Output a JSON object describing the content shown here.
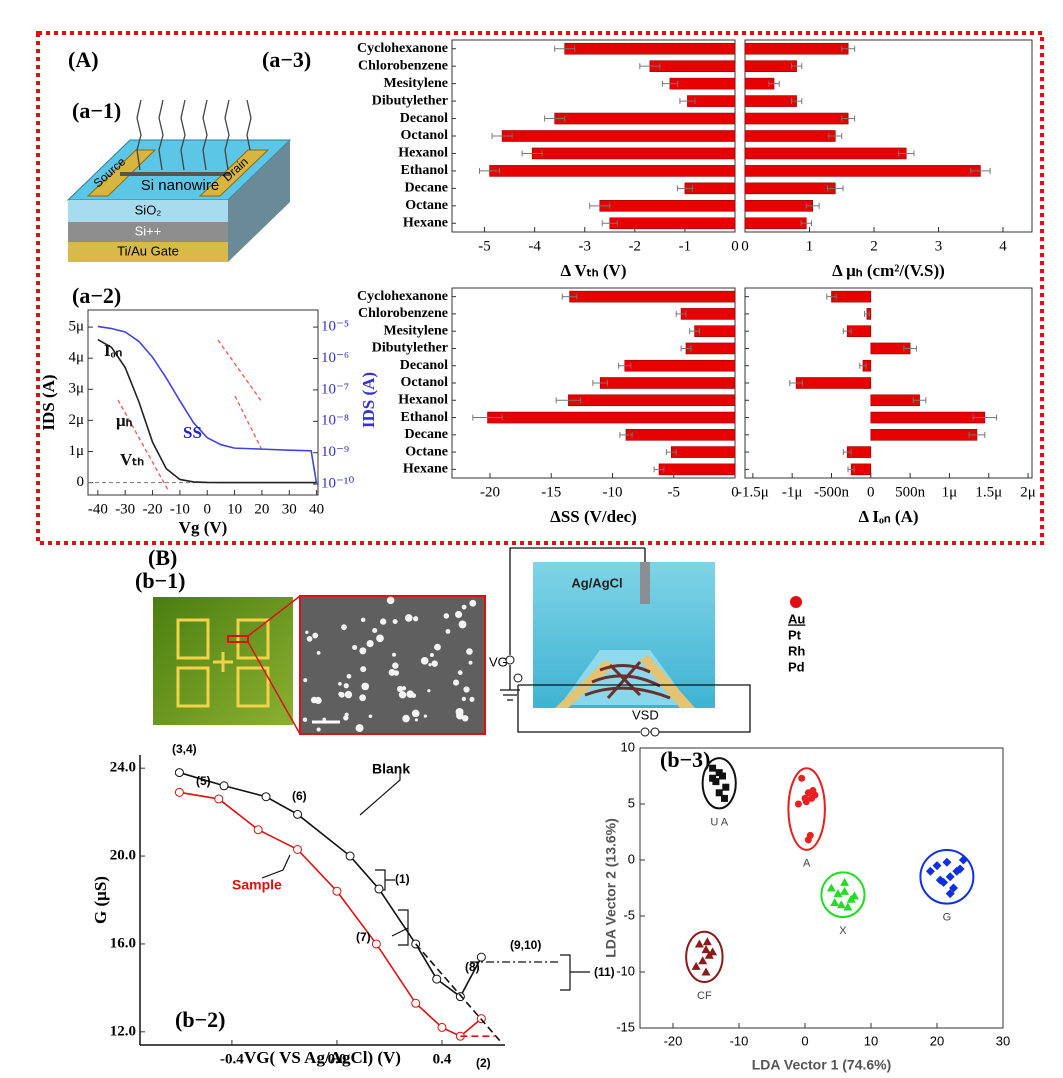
{
  "figure": {
    "panel_a": "(A)",
    "a1": "(a−1)",
    "a2": "(a−2)",
    "a3": "(a−3)",
    "panel_b": "(B)",
    "b1": "(b−1)",
    "b2": "(b−2)",
    "b3": "(b−3)"
  },
  "device": {
    "source": "Source",
    "drain": "Drain",
    "nanowire": "Si nanowire",
    "oxide": "SiO₂",
    "substrate": "Si++",
    "gate": "Ti/Au Gate"
  },
  "setup": {
    "electrode": "Ag/AgCl",
    "vg": "VG",
    "vsd": "VSD",
    "metals": [
      "Au",
      "Pt",
      "Rh",
      "Pd"
    ]
  },
  "chart_data": [
    {
      "type": "bar",
      "orientation": "horizontal",
      "xlabel": "Δ Vₜₕ (V)",
      "color": "#e60000",
      "categories": [
        "Cyclohexanone",
        "Chlorobenzene",
        "Mesitylene",
        "Dibutylether",
        "Decanol",
        "Octanol",
        "Hexanol",
        "Ethanol",
        "Decane",
        "Octane",
        "Hexane"
      ],
      "values": [
        -3.4,
        -1.7,
        -1.3,
        -0.95,
        -3.6,
        -4.65,
        -4.05,
        -4.9,
        -1.0,
        -2.7,
        -2.5
      ],
      "errors": [
        0.2,
        0.2,
        0.15,
        0.15,
        0.2,
        0.2,
        0.2,
        0.2,
        0.15,
        0.2,
        0.15
      ],
      "xlim": [
        -5.65,
        0
      ],
      "xticks": [
        -5,
        -4,
        -3,
        -2,
        -1,
        0
      ]
    },
    {
      "type": "bar",
      "orientation": "horizontal",
      "xlabel": "Δ μₕ (cm²/(V.S))",
      "color": "#e60000",
      "values": [
        1.6,
        0.8,
        0.45,
        0.8,
        1.6,
        1.4,
        2.5,
        3.65,
        1.4,
        1.05,
        0.95
      ],
      "errors": [
        0.1,
        0.08,
        0.08,
        0.08,
        0.1,
        0.1,
        0.12,
        0.15,
        0.12,
        0.1,
        0.08
      ],
      "xlim": [
        0,
        4.45
      ],
      "xticks": [
        0,
        1,
        2,
        3,
        4
      ]
    },
    {
      "type": "bar",
      "orientation": "horizontal",
      "xlabel": "ΔSS (V/dec)",
      "color": "#e60000",
      "categories": [
        "Cyclohexanone",
        "Chlorobenzene",
        "Mesitylene",
        "Dibutylether",
        "Decanol",
        "Octanol",
        "Hexanol",
        "Ethanol",
        "Decane",
        "Octane",
        "Hexane"
      ],
      "values": [
        -13.5,
        -4.4,
        -3.3,
        -4.0,
        -9.0,
        -11.0,
        -13.6,
        -20.2,
        -8.9,
        -5.2,
        -6.2
      ],
      "errors": [
        0.6,
        0.4,
        0.4,
        0.4,
        0.5,
        0.6,
        1.0,
        1.2,
        0.5,
        0.4,
        0.4
      ],
      "xlim": [
        -23.1,
        0
      ],
      "xticks": [
        -20,
        -15,
        -10,
        -5,
        0
      ]
    },
    {
      "type": "bar",
      "orientation": "horizontal",
      "xlabel": "Δ Iₒₙ (A)",
      "color": "#e60000",
      "values": [
        -5e-07,
        -5e-08,
        -3e-07,
        5e-07,
        -1e-07,
        -9.5e-07,
        6.2e-07,
        1.45e-06,
        1.35e-06,
        -3e-07,
        -2.5e-07
      ],
      "errors": [
        6e-08,
        3e-08,
        5e-08,
        8e-08,
        4e-08,
        8e-08,
        8e-08,
        1.5e-07,
        1e-07,
        5e-08,
        4e-08
      ],
      "xlim": [
        -1.6e-06,
        2.05e-06
      ],
      "xticks": [
        {
          "value": -1.5e-06,
          "label": "-1.5μ"
        },
        {
          "value": -1e-06,
          "label": "-1μ"
        },
        {
          "value": -5e-07,
          "label": "-500n"
        },
        0,
        {
          "value": 5e-07,
          "label": "500n"
        },
        {
          "value": 1e-06,
          "label": "1μ"
        },
        {
          "value": 1.5e-06,
          "label": "1.5μ"
        },
        {
          "value": 2e-06,
          "label": "2μ"
        }
      ]
    },
    {
      "type": "line",
      "xlabel": "Vg (V)",
      "ylabel": "IDS (A)",
      "y2label": "IDS (A)",
      "x": [
        -40,
        -35,
        -30,
        -25,
        -20,
        -15,
        -10,
        -5,
        0,
        5,
        10,
        20,
        30,
        38,
        40
      ],
      "series": [
        {
          "color": "#222222",
          "values": [
            4.6e-06,
            4.35e-06,
            3.7e-06,
            2.6e-06,
            1.3e-06,
            4.5e-07,
            1e-07,
            2e-08,
            3e-09,
            1e-09,
            1e-09,
            1e-09,
            1e-09,
            1e-09,
            1e-09
          ]
        },
        {
          "color": "#4444dd",
          "axis": "y2",
          "values": [
            1.05e-05,
            9e-06,
            7e-06,
            3.5e-06,
            1.1e-06,
            2.4e-07,
            4.5e-08,
            9e-09,
            3e-09,
            1.8e-09,
            1.4e-09,
            1.3e-09,
            1.2e-09,
            1.15e-09,
            1e-10
          ]
        }
      ],
      "xlim": [
        -43.6,
        40.5
      ],
      "xticks": [
        -40,
        -30,
        -20,
        -10,
        0,
        10,
        20,
        30,
        40
      ],
      "ylim": [
        -4e-07,
        5.55e-06
      ],
      "yticks": [
        0,
        {
          "value": 1e-06,
          "label": "1μ"
        },
        {
          "value": 2e-06,
          "label": "2μ"
        },
        {
          "value": 3e-06,
          "label": "3μ"
        },
        {
          "value": 4e-06,
          "label": "4μ"
        },
        {
          "value": 5e-06,
          "label": "5μ"
        }
      ],
      "y2lim": [
        4.5e-11,
        3.5e-05
      ],
      "y2log": true,
      "y2ticks": [
        {
          "value": 1e-10,
          "label": "10⁻¹⁰"
        },
        {
          "value": 1e-09,
          "label": "10⁻⁹"
        },
        {
          "value": 1e-08,
          "label": "10⁻⁸"
        },
        {
          "value": 1e-07,
          "label": "10⁻⁷"
        },
        {
          "value": 1e-06,
          "label": "10⁻⁶"
        },
        {
          "value": 1e-05,
          "label": "10⁻⁵"
        }
      ],
      "annotations": [
        "Iₒₙ",
        "μₕ",
        "Vₜₕ",
        "SS"
      ]
    },
    {
      "type": "line",
      "xlabel": "VG( VS Ag/AgCl) (V)",
      "ylabel": "G (μS)",
      "series": [
        {
          "name": "Blank",
          "color": "#111111",
          "markers": true,
          "x": [
            -0.6,
            -0.43,
            -0.27,
            -0.15,
            0.05,
            0.16,
            0.3,
            0.38,
            0.47,
            0.55
          ],
          "values": [
            23.8,
            23.2,
            22.7,
            21.9,
            20.0,
            18.5,
            16.0,
            14.4,
            13.6,
            15.4
          ]
        },
        {
          "name": "Sample",
          "color": "#e01010",
          "markers": true,
          "x": [
            -0.6,
            -0.45,
            -0.3,
            -0.15,
            0.0,
            0.15,
            0.3,
            0.4,
            0.47,
            0.55
          ],
          "values": [
            22.9,
            22.6,
            21.2,
            20.3,
            18.4,
            16.0,
            13.3,
            12.2,
            11.8,
            12.6
          ]
        },
        {
          "color": "#111111",
          "dashed": true,
          "x": [
            0.3,
            0.62
          ],
          "values": [
            16.0,
            11.6
          ]
        },
        {
          "color": "#e01010",
          "dashed": true,
          "x": [
            0.47,
            0.6
          ],
          "values": [
            11.8,
            11.8
          ]
        }
      ],
      "xlim": [
        -0.75,
        0.64
      ],
      "xticks": [
        -0.4,
        {
          "value": 0,
          "label": "0.0"
        },
        0.4
      ],
      "ylim": [
        11.4,
        24.6
      ],
      "yticks": [
        {
          "value": 12,
          "label": "12.0"
        },
        {
          "value": 16,
          "label": "16.0"
        },
        {
          "value": 20,
          "label": "20.0"
        },
        {
          "value": 24,
          "label": "24.0"
        }
      ],
      "annotations": [
        "(3,4)",
        "(5)",
        "(6)",
        "(1)",
        "(7)",
        "(8)",
        "(9,10)",
        "(11)",
        "(2)"
      ]
    },
    {
      "type": "scatter",
      "xlabel": "LDA  Vector 1 (74.6%)",
      "ylabel": "LDA Vector 2 (13.6%)",
      "series": [
        {
          "name": "U A",
          "color": "#111111",
          "marker": "square",
          "x": [
            -14,
            -13,
            -12.5,
            -13.5,
            -12,
            -13,
            -12.2,
            -14
          ],
          "values": [
            8.2,
            7.8,
            7.5,
            7,
            6.5,
            6,
            5.5,
            7.3
          ]
        },
        {
          "name": "A",
          "color": "#e82020",
          "marker": "circle",
          "x": [
            -0.5,
            0.5,
            1,
            0,
            1.5,
            -1,
            0.8,
            0.2,
            1.2,
            0.5
          ],
          "values": [
            7.3,
            6,
            5.5,
            5.5,
            5.8,
            5,
            2.2,
            5.2,
            6.2,
            1.8
          ]
        },
        {
          "name": "X",
          "color": "#22dd22",
          "marker": "triangle",
          "x": [
            4,
            5,
            6,
            7,
            5.5,
            6.5,
            4.5,
            7.5,
            6
          ],
          "values": [
            -2.5,
            -3,
            -2.8,
            -3.5,
            -4,
            -4.2,
            -3.8,
            -3.2,
            -2
          ]
        },
        {
          "name": "G",
          "color": "#1030e0",
          "marker": "diamond",
          "x": [
            19,
            20,
            21,
            22,
            23,
            24,
            22.5,
            21.5,
            20.5,
            23.5,
            22
          ],
          "values": [
            -1,
            -0.5,
            -2,
            -1.5,
            -1,
            0,
            -2.5,
            -0.2,
            -1.8,
            -0.8,
            -3
          ]
        },
        {
          "name": "CF",
          "color": "#8b1a1a",
          "marker": "triangle",
          "x": [
            -16,
            -15,
            -14.5,
            -15.5,
            -14,
            -16.5,
            -15,
            -14.8
          ],
          "values": [
            -7.5,
            -8,
            -8.5,
            -9,
            -8.2,
            -9.5,
            -10,
            -7.3
          ]
        }
      ],
      "xlim": [
        -25,
        30
      ],
      "xticks": [
        -20,
        -10,
        0,
        10,
        20,
        30
      ],
      "ylim": [
        -15,
        10
      ],
      "yticks": [
        -15,
        -10,
        -5,
        0,
        5,
        10
      ]
    }
  ]
}
